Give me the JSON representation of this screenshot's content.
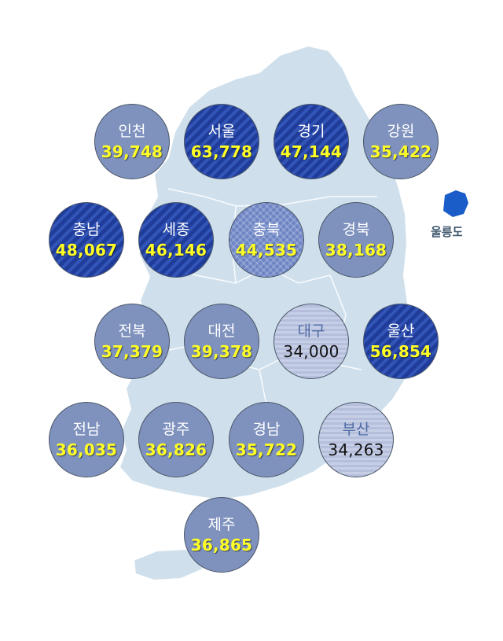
{
  "island_label": "울릉도",
  "colors": {
    "map_fill": "#cfe0ec",
    "map_border": "#ffffff",
    "island_fill": "#1a5cc8",
    "tier1": "#7f92be",
    "tier2": "#1f3c9a",
    "tier3": "#6d84c4",
    "tier4": "#c7cfe6",
    "value_yellow": "#ffff26"
  },
  "regions": [
    {
      "name": "인천",
      "value": "39,748",
      "tier": "t1"
    },
    {
      "name": "서울",
      "value": "63,778",
      "tier": "t2"
    },
    {
      "name": "경기",
      "value": "47,144",
      "tier": "t2"
    },
    {
      "name": "강원",
      "value": "35,422",
      "tier": "t1"
    },
    {
      "name": "충남",
      "value": "48,067",
      "tier": "t2"
    },
    {
      "name": "세종",
      "value": "46,146",
      "tier": "t2"
    },
    {
      "name": "충북",
      "value": "44,535",
      "tier": "t3"
    },
    {
      "name": "경북",
      "value": "38,168",
      "tier": "t1"
    },
    {
      "name": "전북",
      "value": "37,379",
      "tier": "t1"
    },
    {
      "name": "대전",
      "value": "39,378",
      "tier": "t1"
    },
    {
      "name": "대구",
      "value": "34,000",
      "tier": "t4"
    },
    {
      "name": "울산",
      "value": "56,854",
      "tier": "t2"
    },
    {
      "name": "전남",
      "value": "36,035",
      "tier": "t1"
    },
    {
      "name": "광주",
      "value": "36,826",
      "tier": "t1"
    },
    {
      "name": "경남",
      "value": "35,722",
      "tier": "t1"
    },
    {
      "name": "부산",
      "value": "34,263",
      "tier": "t4"
    },
    {
      "name": "제주",
      "value": "36,865",
      "tier": "t1"
    }
  ]
}
